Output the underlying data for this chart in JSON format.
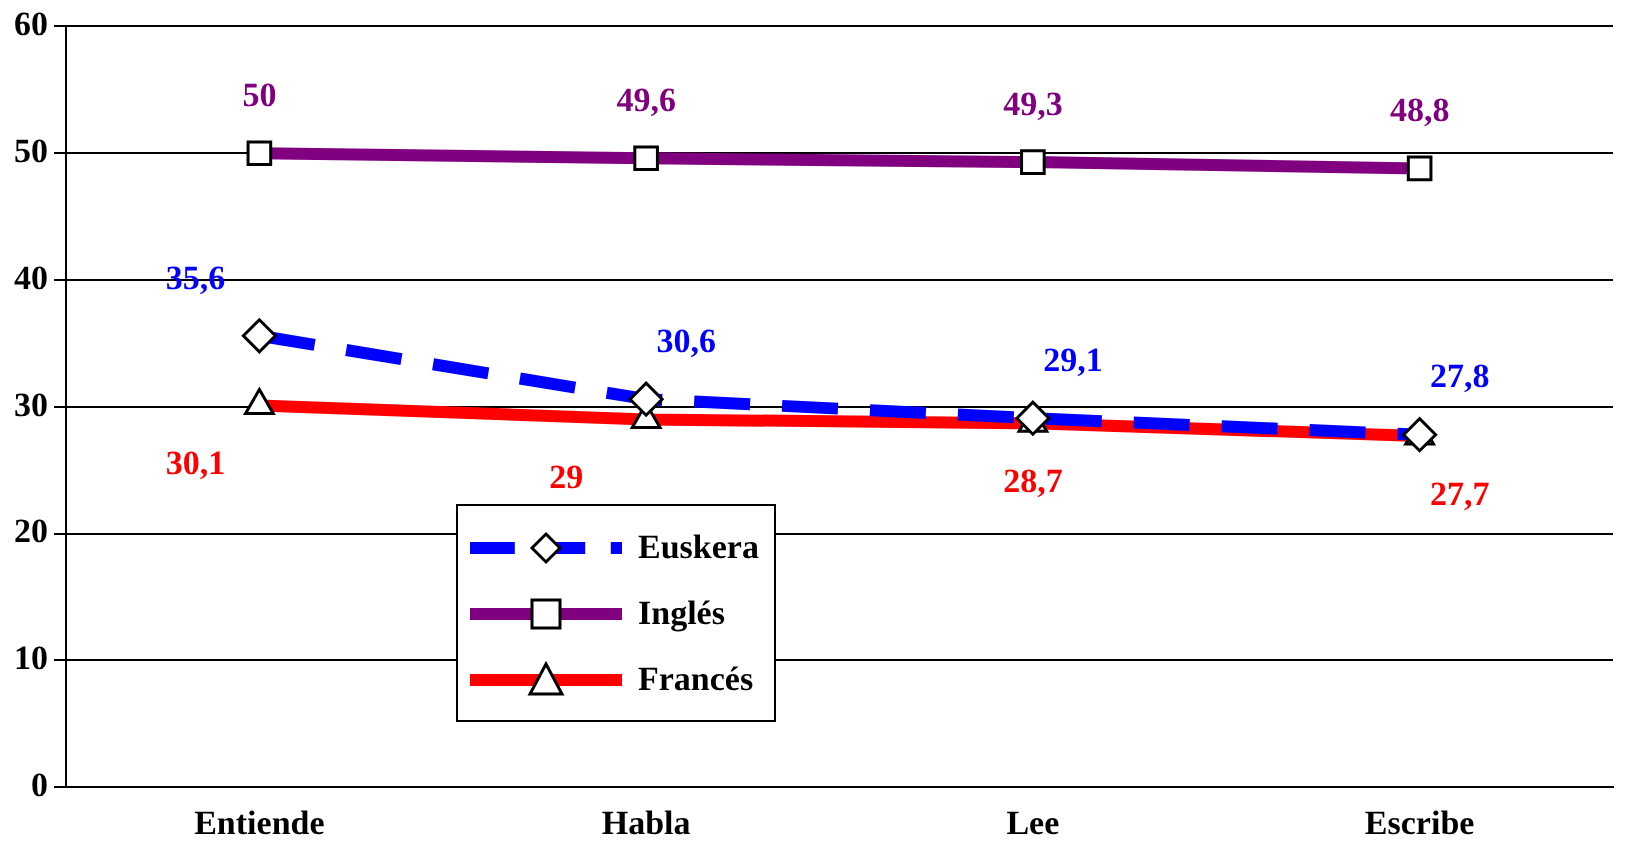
{
  "chart_data": {
    "type": "line",
    "categories": [
      "Entiende",
      "Habla",
      "Lee",
      "Escribe"
    ],
    "series": [
      {
        "name": "Euskera",
        "color": "#0000ff",
        "values": [
          35.6,
          30.6,
          29.1,
          27.8
        ],
        "value_labels": [
          "35,6",
          "30,6",
          "29,1",
          "27,8"
        ],
        "marker": "diamond",
        "line_style": "dashed"
      },
      {
        "name": "Inglés",
        "color": "#800080",
        "values": [
          50,
          49.6,
          49.3,
          48.8
        ],
        "value_labels": [
          "50",
          "49,6",
          "49,3",
          "48,8"
        ],
        "marker": "square",
        "line_style": "solid"
      },
      {
        "name": "Francés",
        "color": "#ff0000",
        "values": [
          30.1,
          29,
          28.7,
          27.7
        ],
        "value_labels": [
          "30,1",
          "29",
          "28,7",
          "27,7"
        ],
        "marker": "triangle",
        "line_style": "solid"
      }
    ],
    "ylim": [
      0,
      60
    ],
    "yticks": [
      0,
      10,
      20,
      30,
      40,
      50,
      60
    ],
    "grid": "y",
    "legend": "bottom left"
  }
}
